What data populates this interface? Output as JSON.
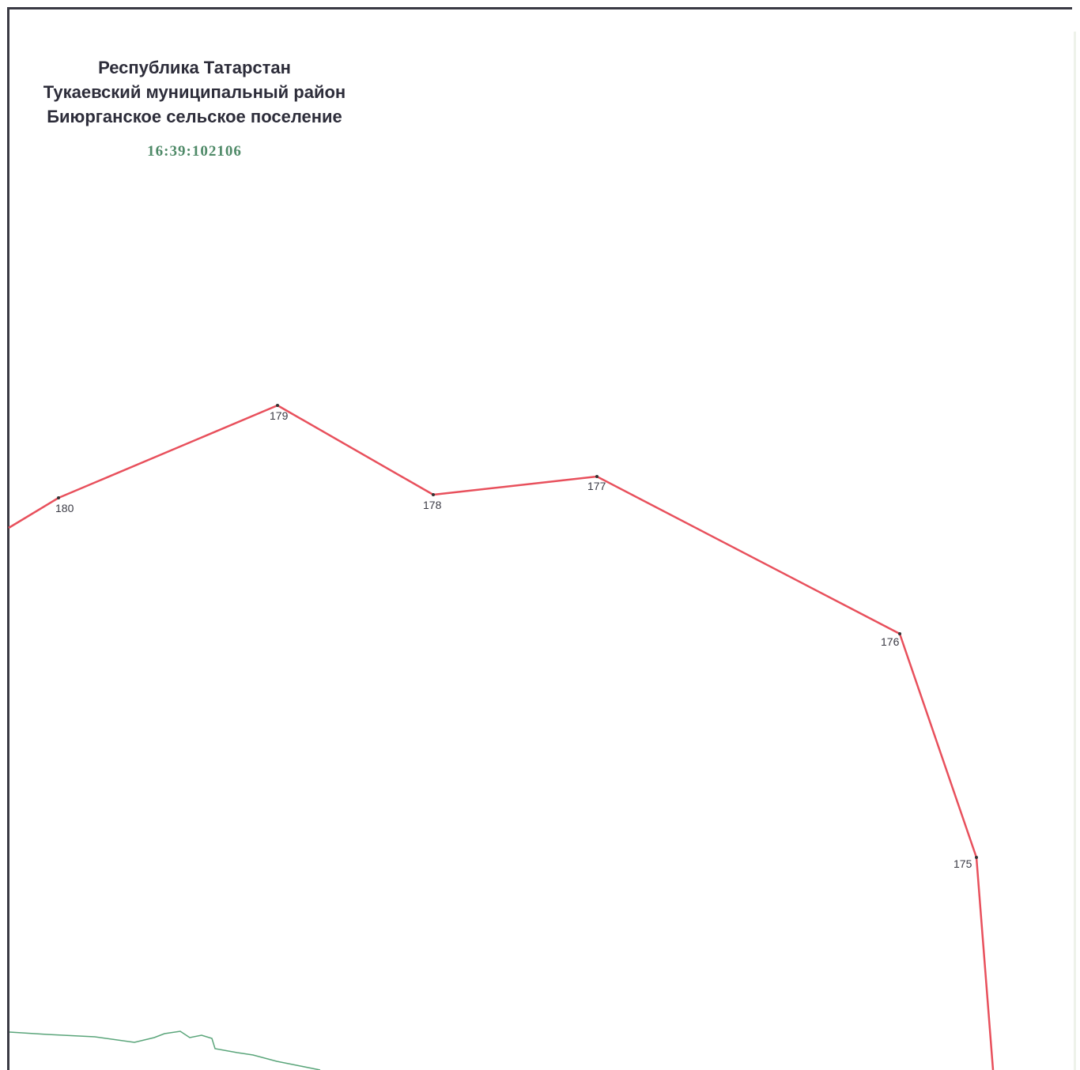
{
  "header": {
    "line1": "Республика Татарстан",
    "line2": "Тукаевский муниципальный район",
    "line3": "Биюрганское сельское поселение",
    "cadastral_number": "16:39:102106"
  },
  "boundary": {
    "color": "#e8505c",
    "points": [
      {
        "id": "180",
        "label": "180"
      },
      {
        "id": "179",
        "label": "179"
      },
      {
        "id": "178",
        "label": "178"
      },
      {
        "id": "177",
        "label": "177"
      },
      {
        "id": "176",
        "label": "176"
      },
      {
        "id": "175",
        "label": "175"
      }
    ]
  },
  "colors": {
    "frame": "#3a3a44",
    "header_text": "#2d2d3a",
    "cadastral_number": "#4f8a68",
    "green_line": "#5aa57a",
    "point_marker": "#333333"
  }
}
